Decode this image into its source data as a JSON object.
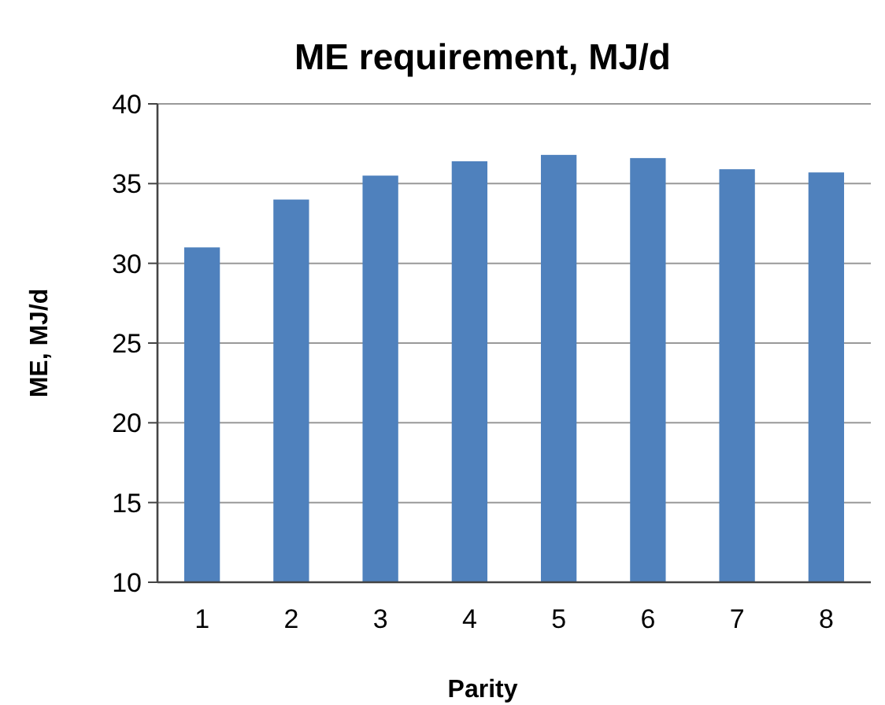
{
  "chart_data": {
    "type": "bar",
    "title": "ME requirement, MJ/d",
    "xlabel": "Parity",
    "ylabel": "ME, MJ/d",
    "categories": [
      "1",
      "2",
      "3",
      "4",
      "5",
      "6",
      "7",
      "8"
    ],
    "values": [
      31.0,
      34.0,
      35.5,
      36.4,
      36.8,
      36.6,
      35.9,
      35.7
    ],
    "color": "#4f81bd",
    "ylim": [
      10,
      40
    ],
    "yticks": [
      10,
      15,
      20,
      25,
      30,
      35,
      40
    ],
    "grid": "y"
  }
}
